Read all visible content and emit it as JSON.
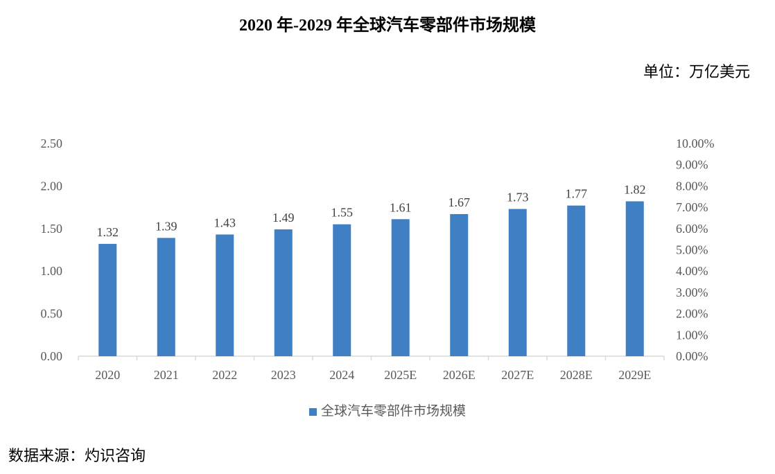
{
  "chart_data": {
    "type": "bar",
    "title": "2020 年-2029 年全球汽车零部件市场规模",
    "unit_label": "单位：万亿美元",
    "categories": [
      "2020",
      "2021",
      "2022",
      "2023",
      "2024",
      "2025E",
      "2026E",
      "2027E",
      "2028E",
      "2029E"
    ],
    "series": [
      {
        "name": "全球汽车零部件市场规模",
        "values": [
          1.32,
          1.39,
          1.43,
          1.49,
          1.55,
          1.61,
          1.67,
          1.73,
          1.77,
          1.82
        ],
        "color": "#3F7FC3"
      }
    ],
    "ylim": [
      0,
      2.5
    ],
    "yticks": [
      "0.00",
      "0.50",
      "1.00",
      "1.50",
      "2.00",
      "2.50"
    ],
    "y2lim": [
      0,
      10
    ],
    "y2ticks": [
      "0.00%",
      "1.00%",
      "2.00%",
      "3.00%",
      "4.00%",
      "5.00%",
      "6.00%",
      "7.00%",
      "8.00%",
      "9.00%",
      "10.00%"
    ],
    "legend_position": "bottom",
    "grid": false,
    "source": "数据来源：灼识咨询"
  }
}
